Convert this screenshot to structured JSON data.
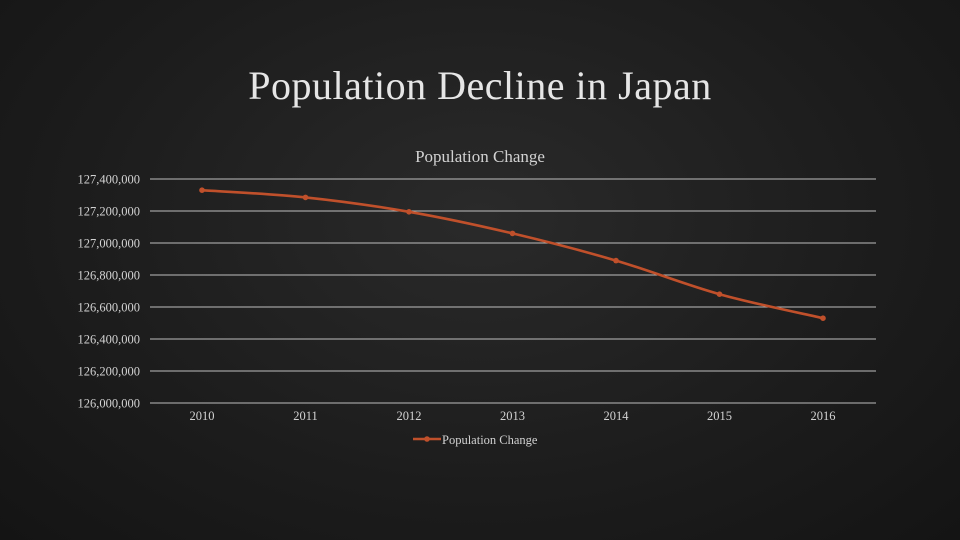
{
  "slide": {
    "title": "Population Decline in Japan"
  },
  "colors": {
    "series": "#c0502b",
    "grid": "#d9d9d9"
  },
  "chart_data": {
    "type": "line",
    "title": "Population Change",
    "categories": [
      "2010",
      "2011",
      "2012",
      "2013",
      "2014",
      "2015",
      "2016"
    ],
    "series": [
      {
        "name": "Population Change",
        "values": [
          127330000,
          127285000,
          127195000,
          127060000,
          126890000,
          126680000,
          126530000
        ]
      }
    ],
    "y_ticks": [
      "126,000,000",
      "126,200,000",
      "126,400,000",
      "126,600,000",
      "126,800,000",
      "127,000,000",
      "127,200,000",
      "127,400,000"
    ],
    "ylim": [
      126000000,
      127400000
    ],
    "grid": true,
    "legend": "bottom"
  }
}
